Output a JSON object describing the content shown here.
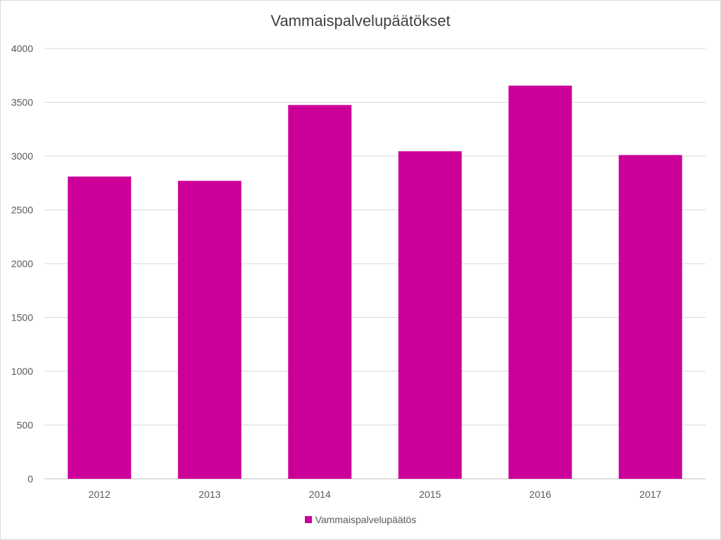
{
  "chart_data": {
    "type": "bar",
    "title": "Vammaispalvelupäätökset",
    "xlabel": "",
    "ylabel": "",
    "categories": [
      "2012",
      "2013",
      "2014",
      "2015",
      "2016",
      "2017"
    ],
    "series": [
      {
        "name": "Vammaispalvelupäätös",
        "values": [
          2810,
          2770,
          3475,
          3045,
          3655,
          3010
        ],
        "color": "#cc0099"
      }
    ],
    "ylim": [
      0,
      4000
    ],
    "yticks": [
      0,
      500,
      1000,
      1500,
      2000,
      2500,
      3000,
      3500,
      4000
    ],
    "grid": true,
    "legend_position": "bottom"
  }
}
